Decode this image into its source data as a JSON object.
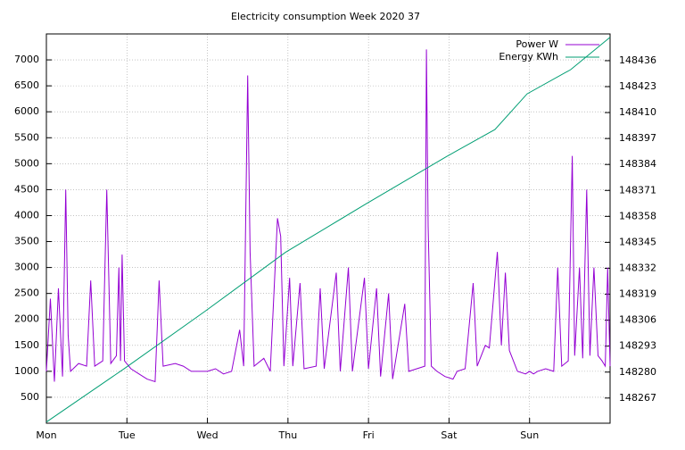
{
  "chart_data": {
    "type": "line",
    "title": "Electricity consumption Week 2020 37",
    "xlim": [
      0,
      7
    ],
    "xticks": [
      {
        "value": 0,
        "label": "Mon"
      },
      {
        "value": 1,
        "label": "Tue"
      },
      {
        "value": 2,
        "label": "Wed"
      },
      {
        "value": 3,
        "label": "Thu"
      },
      {
        "value": 4,
        "label": "Fri"
      },
      {
        "value": 5,
        "label": "Sat"
      },
      {
        "value": 6,
        "label": "Sun"
      }
    ],
    "ylim": [
      0,
      7500
    ],
    "yticks": [
      500,
      1000,
      1500,
      2000,
      2500,
      3000,
      3500,
      4000,
      4500,
      5000,
      5500,
      6000,
      6500,
      7000
    ],
    "y2lim": [
      148254.4,
      148449.4
    ],
    "y2ticks": [
      148267,
      148280,
      148293,
      148306,
      148319,
      148332,
      148345,
      148358,
      148371,
      148384,
      148397,
      148410,
      148423,
      148436
    ],
    "grid": true,
    "legend": "top-right",
    "series": [
      {
        "name": "Power W",
        "color": "#9400d3",
        "axis": "y",
        "x": [
          0,
          0.05,
          0.1,
          0.15,
          0.2,
          0.24,
          0.27,
          0.3,
          0.4,
          0.5,
          0.55,
          0.6,
          0.7,
          0.75,
          0.8,
          0.87,
          0.9,
          0.92,
          0.94,
          0.97,
          1.05,
          1.15,
          1.25,
          1.35,
          1.4,
          1.45,
          1.6,
          1.7,
          1.8,
          1.9,
          2.0,
          2.1,
          2.2,
          2.3,
          2.4,
          2.45,
          2.5,
          2.53,
          2.58,
          2.7,
          2.78,
          2.87,
          2.91,
          2.95,
          3.02,
          3.06,
          3.15,
          3.2,
          3.35,
          3.4,
          3.45,
          3.6,
          3.65,
          3.75,
          3.8,
          3.95,
          4.0,
          4.1,
          4.15,
          4.25,
          4.3,
          4.45,
          4.5,
          4.6,
          4.7,
          4.72,
          4.74,
          4.78,
          4.85,
          4.95,
          5.05,
          5.1,
          5.2,
          5.3,
          5.35,
          5.45,
          5.5,
          5.6,
          5.65,
          5.7,
          5.75,
          5.85,
          5.95,
          6.0,
          6.05,
          6.1,
          6.2,
          6.3,
          6.35,
          6.4,
          6.48,
          6.53,
          6.56,
          6.62,
          6.66,
          6.71,
          6.75,
          6.8,
          6.85,
          6.9,
          6.94,
          6.97,
          7.0
        ],
        "values": [
          1000,
          2400,
          800,
          2600,
          900,
          4500,
          1700,
          1000,
          1150,
          1100,
          2750,
          1100,
          1200,
          4500,
          1150,
          1300,
          3000,
          1200,
          3250,
          1200,
          1050,
          950,
          850,
          800,
          2750,
          1100,
          1150,
          1100,
          1000,
          1000,
          1000,
          1050,
          950,
          1000,
          1800,
          1100,
          6700,
          3300,
          1100,
          1250,
          1000,
          3950,
          3600,
          1100,
          2800,
          1100,
          2700,
          1050,
          1100,
          2600,
          1050,
          2900,
          1000,
          3000,
          1000,
          2800,
          1050,
          2600,
          900,
          2500,
          850,
          2300,
          1000,
          1050,
          1100,
          7200,
          3800,
          1100,
          1000,
          900,
          850,
          1000,
          1050,
          2700,
          1100,
          1500,
          1450,
          3300,
          1500,
          2900,
          1400,
          1000,
          950,
          1000,
          950,
          1000,
          1050,
          1000,
          3000,
          1100,
          1200,
          5150,
          1300,
          3000,
          1250,
          4500,
          1300,
          3000,
          1300,
          1200,
          1100,
          3000,
          1100
        ]
      },
      {
        "name": "Energy KWh",
        "color": "#009e73",
        "axis": "y2",
        "x": [
          0,
          0.97,
          1.97,
          2.97,
          3.97,
          4.97,
          5.57,
          5.97,
          6.51,
          7.0
        ],
        "values": [
          148255,
          148281.8,
          148310.5,
          148340,
          148364.3,
          148388,
          148401.5,
          148419.4,
          148431.5,
          148447.7
        ]
      }
    ]
  }
}
